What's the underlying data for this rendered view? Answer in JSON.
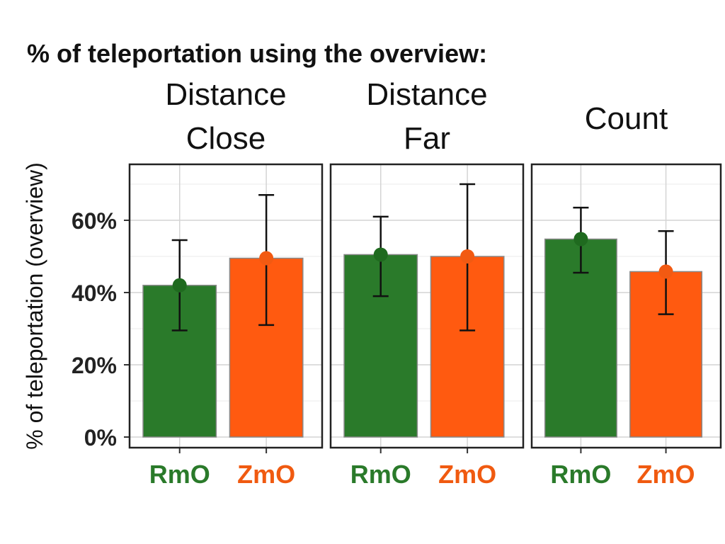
{
  "chart_data": {
    "type": "bar",
    "title": "% of teleportation using the overview:",
    "ylabel": "% of teleportation (overview)",
    "ylim": [
      0,
      0.75
    ],
    "yticks": [
      {
        "value": 0,
        "label": "0%"
      },
      {
        "value": 0.2,
        "label": "20%"
      },
      {
        "value": 0.4,
        "label": "40%"
      },
      {
        "value": 0.6,
        "label": "60%"
      }
    ],
    "grid": true,
    "colors": {
      "RmO": "#2a7a2a",
      "ZmO": "#ff5a10",
      "RmO_label": "#2a7a2a",
      "ZmO_label": "#f05a10"
    },
    "facets": [
      {
        "title_lines": [
          "Distance",
          "Close"
        ],
        "categories": [
          "RmO",
          "ZmO"
        ],
        "values": [
          0.42,
          0.495
        ],
        "error_low": [
          0.295,
          0.31
        ],
        "error_high": [
          0.545,
          0.67
        ]
      },
      {
        "title_lines": [
          "Distance",
          "Far"
        ],
        "categories": [
          "RmO",
          "ZmO"
        ],
        "values": [
          0.505,
          0.5
        ],
        "error_low": [
          0.39,
          0.295
        ],
        "error_high": [
          0.61,
          0.7
        ]
      },
      {
        "title_lines": [
          "Count"
        ],
        "categories": [
          "RmO",
          "ZmO"
        ],
        "values": [
          0.548,
          0.458
        ],
        "error_low": [
          0.455,
          0.34
        ],
        "error_high": [
          0.635,
          0.57
        ]
      }
    ]
  }
}
